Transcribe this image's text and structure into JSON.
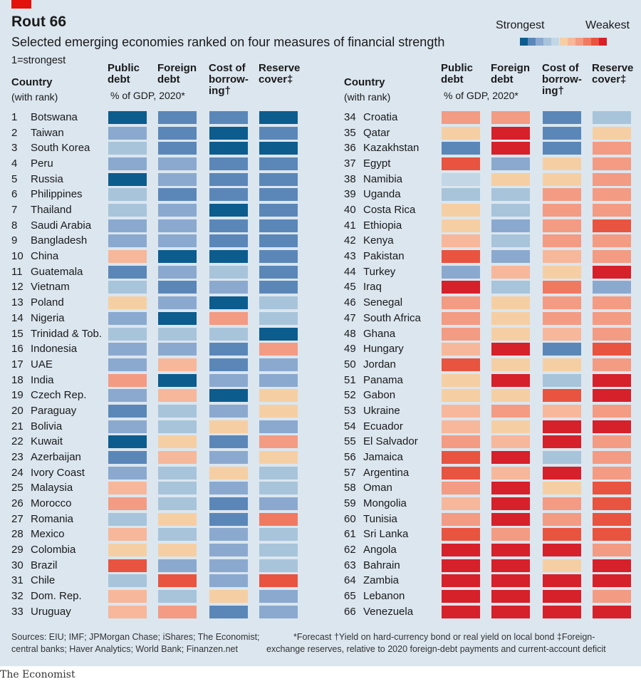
{
  "header": {
    "title": "Rout 66",
    "subtitle": "Selected emerging economies ranked on four measures of financial strength",
    "rank_note": "1=strongest"
  },
  "legend": {
    "strongest": "Strongest",
    "weakest": "Weakest",
    "colors": [
      "#0c5c8e",
      "#5b87b8",
      "#8ba9cf",
      "#a8c4da",
      "#c2d6e6",
      "#f5cfa3",
      "#f7b79b",
      "#f39b83",
      "#f07a60",
      "#e8543f",
      "#d6202a"
    ]
  },
  "columns": {
    "country": "Country",
    "country_sub": "(with rank)",
    "public_debt": [
      "Public",
      "debt"
    ],
    "foreign_debt": [
      "Foreign",
      "debt"
    ],
    "gdp_note": "% of GDP, 2020*",
    "cost_of_borrowing": [
      "Cost of",
      "borrow-",
      "ing†"
    ],
    "reserve_cover": [
      "Reserve",
      "cover‡"
    ]
  },
  "footer": {
    "sources_1": "Sources: EIU; IMF; JPMorgan Chase; iShares; The Economist;",
    "sources_2": "central banks; Haver Analytics; World Bank; Finanzen.net",
    "footnotes_1": "*Forecast   †Yield on hard-currency bond or real yield on local bond   ‡Foreign-",
    "footnotes_2": "exchange reserves, relative to 2020 foreign-debt payments and current-account deficit",
    "brand": "The Economist"
  },
  "chart_data": {
    "type": "heatmap",
    "title": "Rout 66",
    "subtitle": "Selected emerging economies ranked on four measures of financial strength",
    "scale": "1 (strongest, blue) to 11 (weakest, red)",
    "measures": [
      "Public debt",
      "Foreign debt",
      "Cost of borrowing",
      "Reserve cover"
    ],
    "rows": [
      {
        "rank": 1,
        "country": "Botswana",
        "values": [
          1,
          2,
          2,
          1
        ]
      },
      {
        "rank": 2,
        "country": "Taiwan",
        "values": [
          3,
          2,
          1,
          2
        ]
      },
      {
        "rank": 3,
        "country": "South Korea",
        "values": [
          4,
          2,
          1,
          1
        ]
      },
      {
        "rank": 4,
        "country": "Peru",
        "values": [
          3,
          3,
          2,
          2
        ]
      },
      {
        "rank": 5,
        "country": "Russia",
        "values": [
          1,
          3,
          2,
          2
        ]
      },
      {
        "rank": 6,
        "country": "Philippines",
        "values": [
          4,
          2,
          2,
          2
        ]
      },
      {
        "rank": 7,
        "country": "Thailand",
        "values": [
          4,
          3,
          1,
          2
        ]
      },
      {
        "rank": 8,
        "country": "Saudi Arabia",
        "values": [
          3,
          3,
          2,
          2
        ]
      },
      {
        "rank": 9,
        "country": "Bangladesh",
        "values": [
          3,
          3,
          2,
          2
        ]
      },
      {
        "rank": 10,
        "country": "China",
        "values": [
          7,
          1,
          1,
          2
        ]
      },
      {
        "rank": 11,
        "country": "Guatemala",
        "values": [
          2,
          3,
          4,
          2
        ]
      },
      {
        "rank": 12,
        "country": "Vietnam",
        "values": [
          4,
          2,
          3,
          2
        ]
      },
      {
        "rank": 13,
        "country": "Poland",
        "values": [
          6,
          3,
          1,
          4
        ]
      },
      {
        "rank": 14,
        "country": "Nigeria",
        "values": [
          3,
          1,
          8,
          4
        ]
      },
      {
        "rank": 15,
        "country": "Trinidad & Tob.",
        "values": [
          4,
          4,
          4,
          1
        ]
      },
      {
        "rank": 16,
        "country": "Indonesia",
        "values": [
          3,
          3,
          2,
          8
        ]
      },
      {
        "rank": 17,
        "country": "UAE",
        "values": [
          3,
          7,
          2,
          3
        ]
      },
      {
        "rank": 18,
        "country": "India",
        "values": [
          8,
          1,
          3,
          3
        ]
      },
      {
        "rank": 19,
        "country": "Czech Rep.",
        "values": [
          3,
          7,
          1,
          6
        ]
      },
      {
        "rank": 20,
        "country": "Paraguay",
        "values": [
          2,
          4,
          3,
          6
        ]
      },
      {
        "rank": 21,
        "country": "Bolivia",
        "values": [
          3,
          4,
          6,
          3
        ]
      },
      {
        "rank": 22,
        "country": "Kuwait",
        "values": [
          1,
          6,
          2,
          8
        ]
      },
      {
        "rank": 23,
        "country": "Azerbaijan",
        "values": [
          2,
          7,
          3,
          6
        ]
      },
      {
        "rank": 24,
        "country": "Ivory Coast",
        "values": [
          3,
          4,
          6,
          4
        ]
      },
      {
        "rank": 25,
        "country": "Malaysia",
        "values": [
          7,
          4,
          3,
          4
        ]
      },
      {
        "rank": 26,
        "country": "Morocco",
        "values": [
          8,
          4,
          2,
          3
        ]
      },
      {
        "rank": 27,
        "country": "Romania",
        "values": [
          4,
          6,
          2,
          9
        ]
      },
      {
        "rank": 28,
        "country": "Mexico",
        "values": [
          7,
          4,
          3,
          4
        ]
      },
      {
        "rank": 29,
        "country": "Colombia",
        "values": [
          6,
          6,
          3,
          4
        ]
      },
      {
        "rank": 30,
        "country": "Brazil",
        "values": [
          10,
          3,
          3,
          4
        ]
      },
      {
        "rank": 31,
        "country": "Chile",
        "values": [
          4,
          10,
          3,
          10
        ]
      },
      {
        "rank": 32,
        "country": "Dom. Rep.",
        "values": [
          7,
          4,
          6,
          3
        ]
      },
      {
        "rank": 33,
        "country": "Uruguay",
        "values": [
          7,
          8,
          2,
          3
        ]
      },
      {
        "rank": 34,
        "country": "Croatia",
        "values": [
          8,
          8,
          2,
          4
        ]
      },
      {
        "rank": 35,
        "country": "Qatar",
        "values": [
          6,
          11,
          2,
          6
        ]
      },
      {
        "rank": 36,
        "country": "Kazakhstan",
        "values": [
          2,
          11,
          2,
          8
        ]
      },
      {
        "rank": 37,
        "country": "Egypt",
        "values": [
          10,
          3,
          6,
          8
        ]
      },
      {
        "rank": 38,
        "country": "Namibia",
        "values": [
          5,
          6,
          6,
          8
        ]
      },
      {
        "rank": 39,
        "country": "Uganda",
        "values": [
          4,
          4,
          8,
          8
        ]
      },
      {
        "rank": 40,
        "country": "Costa Rica",
        "values": [
          6,
          4,
          8,
          8
        ]
      },
      {
        "rank": 41,
        "country": "Ethiopia",
        "values": [
          6,
          3,
          8,
          10
        ]
      },
      {
        "rank": 42,
        "country": "Kenya",
        "values": [
          7,
          4,
          8,
          8
        ]
      },
      {
        "rank": 43,
        "country": "Pakistan",
        "values": [
          10,
          3,
          7,
          8
        ]
      },
      {
        "rank": 44,
        "country": "Turkey",
        "values": [
          3,
          7,
          6,
          11
        ]
      },
      {
        "rank": 45,
        "country": "Iraq",
        "values": [
          11,
          4,
          9,
          3
        ]
      },
      {
        "rank": 46,
        "country": "Senegal",
        "values": [
          8,
          6,
          8,
          8
        ]
      },
      {
        "rank": 47,
        "country": "South Africa",
        "values": [
          8,
          6,
          8,
          8
        ]
      },
      {
        "rank": 48,
        "country": "Ghana",
        "values": [
          8,
          6,
          7,
          8
        ]
      },
      {
        "rank": 49,
        "country": "Hungary",
        "values": [
          7,
          11,
          2,
          10
        ]
      },
      {
        "rank": 50,
        "country": "Jordan",
        "values": [
          10,
          6,
          6,
          8
        ]
      },
      {
        "rank": 51,
        "country": "Panama",
        "values": [
          6,
          11,
          4,
          11
        ]
      },
      {
        "rank": 52,
        "country": "Gabon",
        "values": [
          6,
          6,
          10,
          11
        ]
      },
      {
        "rank": 53,
        "country": "Ukraine",
        "values": [
          7,
          8,
          7,
          8
        ]
      },
      {
        "rank": 54,
        "country": "Ecuador",
        "values": [
          7,
          6,
          11,
          11
        ]
      },
      {
        "rank": 55,
        "country": "El Salvador",
        "values": [
          8,
          7,
          11,
          8
        ]
      },
      {
        "rank": 56,
        "country": "Jamaica",
        "values": [
          10,
          11,
          4,
          8
        ]
      },
      {
        "rank": 57,
        "country": "Argentina",
        "values": [
          10,
          7,
          11,
          8
        ]
      },
      {
        "rank": 58,
        "country": "Oman",
        "values": [
          8,
          11,
          6,
          10
        ]
      },
      {
        "rank": 59,
        "country": "Mongolia",
        "values": [
          7,
          11,
          8,
          10
        ]
      },
      {
        "rank": 60,
        "country": "Tunisia",
        "values": [
          8,
          11,
          8,
          10
        ]
      },
      {
        "rank": 61,
        "country": "Sri Lanka",
        "values": [
          10,
          8,
          10,
          10
        ]
      },
      {
        "rank": 62,
        "country": "Angola",
        "values": [
          11,
          11,
          11,
          8
        ]
      },
      {
        "rank": 63,
        "country": "Bahrain",
        "values": [
          11,
          11,
          6,
          11
        ]
      },
      {
        "rank": 64,
        "country": "Zambia",
        "values": [
          11,
          11,
          11,
          11
        ]
      },
      {
        "rank": 65,
        "country": "Lebanon",
        "values": [
          11,
          11,
          11,
          8
        ]
      },
      {
        "rank": 66,
        "country": "Venezuela",
        "values": [
          11,
          11,
          11,
          11
        ]
      }
    ]
  }
}
